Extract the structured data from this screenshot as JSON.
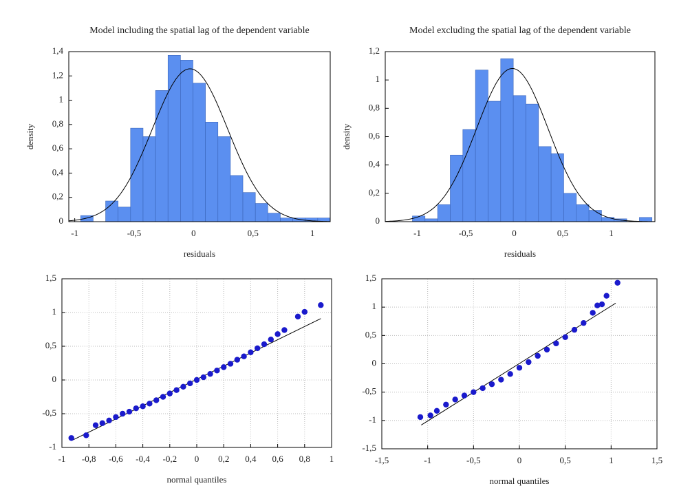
{
  "chart_data": [
    {
      "type": "histogram",
      "title": "Model including the spatial lag of the dependent variable",
      "xlabel": "residuals",
      "ylabel": "density",
      "bins": [
        -0.95,
        -0.845,
        -0.74,
        -0.635,
        -0.53,
        -0.425,
        -0.32,
        -0.215,
        -0.11,
        -0.005,
        0.1,
        0.205,
        0.31,
        0.415,
        0.52,
        0.625,
        0.73,
        0.835,
        0.94,
        1.045,
        1.15
      ],
      "values": [
        0.05,
        0,
        0.17,
        0.12,
        0.77,
        0.7,
        1.08,
        1.37,
        1.33,
        1.14,
        0.82,
        0.7,
        0.38,
        0.24,
        0.15,
        0.07,
        0.03,
        0.03,
        0.03,
        0.03
      ],
      "color": "#5b8ff0",
      "fit": {
        "mean": -0.03,
        "sd": 0.317
      },
      "xlim": [
        -1.05,
        1.15
      ],
      "xticks": [
        -1,
        {
          "value": -0.5,
          "label": "-0,5"
        },
        0,
        {
          "value": 0.5,
          "label": "0,5"
        },
        1
      ],
      "ylim": [
        0,
        1.4
      ],
      "yticks": [
        0,
        {
          "value": 0.2,
          "label": "0,2"
        },
        {
          "value": 0.4,
          "label": "0,4"
        },
        {
          "value": 0.6,
          "label": "0,6"
        },
        {
          "value": 0.8,
          "label": "0,8"
        },
        1,
        {
          "value": 1.2,
          "label": "1,2"
        },
        {
          "value": 1.4,
          "label": "1,4"
        }
      ],
      "grid": false
    },
    {
      "type": "histogram",
      "title": "Model excluding the spatial lag of the dependent variable",
      "xlabel": "residuals",
      "ylabel": "density",
      "bins": [
        -1.05,
        -0.92,
        -0.79,
        -0.66,
        -0.53,
        -0.4,
        -0.27,
        -0.14,
        -0.01,
        0.12,
        0.25,
        0.38,
        0.51,
        0.64,
        0.77,
        0.9,
        1.03,
        1.16,
        1.29,
        1.42
      ],
      "values": [
        0.04,
        0.02,
        0.12,
        0.47,
        0.65,
        1.07,
        0.85,
        1.15,
        0.89,
        0.83,
        0.53,
        0.48,
        0.2,
        0.12,
        0.08,
        0.03,
        0.02,
        0,
        0.03
      ],
      "color": "#5b8ff0",
      "fit": {
        "mean": -0.02,
        "sd": 0.369
      },
      "xlim": [
        -1.33,
        1.45
      ],
      "xticks": [
        -1,
        {
          "value": -0.5,
          "label": "-0,5"
        },
        0,
        {
          "value": 0.5,
          "label": "0,5"
        },
        1
      ],
      "ylim": [
        0,
        1.2
      ],
      "yticks": [
        0,
        {
          "value": 0.2,
          "label": "0,2"
        },
        {
          "value": 0.4,
          "label": "0,4"
        },
        {
          "value": 0.6,
          "label": "0,6"
        },
        {
          "value": 0.8,
          "label": "0,8"
        },
        1,
        {
          "value": 1.2,
          "label": "1,2"
        }
      ],
      "grid": false
    },
    {
      "type": "scatter",
      "xlabel": "normal quantiles",
      "color": "#1a1acc",
      "x": [
        -0.93,
        -0.82,
        -0.75,
        -0.7,
        -0.65,
        -0.6,
        -0.55,
        -0.5,
        -0.45,
        -0.4,
        -0.35,
        -0.3,
        -0.25,
        -0.2,
        -0.15,
        -0.1,
        -0.05,
        0,
        0.05,
        0.1,
        0.15,
        0.2,
        0.25,
        0.3,
        0.35,
        0.4,
        0.45,
        0.5,
        0.55,
        0.6,
        0.65,
        0.75,
        0.8,
        0.92
      ],
      "y": [
        -0.86,
        -0.82,
        -0.67,
        -0.64,
        -0.6,
        -0.55,
        -0.5,
        -0.47,
        -0.42,
        -0.39,
        -0.35,
        -0.3,
        -0.25,
        -0.2,
        -0.15,
        -0.1,
        -0.05,
        0,
        0.04,
        0.09,
        0.14,
        0.19,
        0.24,
        0.3,
        0.35,
        0.41,
        0.47,
        0.53,
        0.6,
        0.68,
        0.74,
        0.94,
        1.01,
        1.11
      ],
      "reference_line": {
        "x": [
          -0.93,
          0.92
        ],
        "y": [
          -0.9,
          0.91
        ]
      },
      "xlim": [
        -1,
        1
      ],
      "xticks": [
        -1,
        {
          "value": -0.8,
          "label": "-0,8"
        },
        {
          "value": -0.6,
          "label": "-0,6"
        },
        {
          "value": -0.4,
          "label": "-0,4"
        },
        {
          "value": -0.2,
          "label": "-0,2"
        },
        0,
        {
          "value": 0.2,
          "label": "0,2"
        },
        {
          "value": 0.4,
          "label": "0,4"
        },
        {
          "value": 0.6,
          "label": "0,6"
        },
        {
          "value": 0.8,
          "label": "0,8"
        },
        1
      ],
      "ylim": [
        -1,
        1.5
      ],
      "yticks": [
        -1,
        {
          "value": -0.5,
          "label": "-0,5"
        },
        0,
        {
          "value": 0.5,
          "label": "0,5"
        },
        1,
        {
          "value": 1.5,
          "label": "1,5"
        }
      ],
      "grid": true
    },
    {
      "type": "scatter",
      "xlabel": "normal quantiles",
      "color": "#1a1acc",
      "x": [
        -1.08,
        -0.97,
        -0.9,
        -0.8,
        -0.7,
        -0.6,
        -0.5,
        -0.4,
        -0.3,
        -0.2,
        -0.1,
        0,
        0.1,
        0.2,
        0.3,
        0.4,
        0.5,
        0.6,
        0.7,
        0.8,
        0.85,
        0.9,
        0.95,
        1.07
      ],
      "y": [
        -0.94,
        -0.91,
        -0.83,
        -0.72,
        -0.63,
        -0.56,
        -0.5,
        -0.43,
        -0.36,
        -0.28,
        -0.18,
        -0.07,
        0.03,
        0.14,
        0.25,
        0.36,
        0.47,
        0.6,
        0.72,
        0.9,
        1.03,
        1.05,
        1.2,
        1.43
      ],
      "reference_line": {
        "x": [
          -1.07,
          1.05
        ],
        "y": [
          -1.08,
          1.07
        ]
      },
      "xlim": [
        -1.5,
        1.5
      ],
      "xticks": [
        {
          "value": -1.5,
          "label": "-1,5"
        },
        -1,
        {
          "value": -0.5,
          "label": "-0,5"
        },
        0,
        {
          "value": 0.5,
          "label": "0,5"
        },
        1,
        {
          "value": 1.5,
          "label": "1,5"
        }
      ],
      "ylim": [
        -1.5,
        1.5
      ],
      "yticks": [
        {
          "value": -1.5,
          "label": "-1,5"
        },
        -1,
        {
          "value": -0.5,
          "label": "-0,5"
        },
        0,
        {
          "value": 0.5,
          "label": "0,5"
        },
        1,
        {
          "value": 1.5,
          "label": "1,5"
        }
      ],
      "grid": true
    }
  ]
}
